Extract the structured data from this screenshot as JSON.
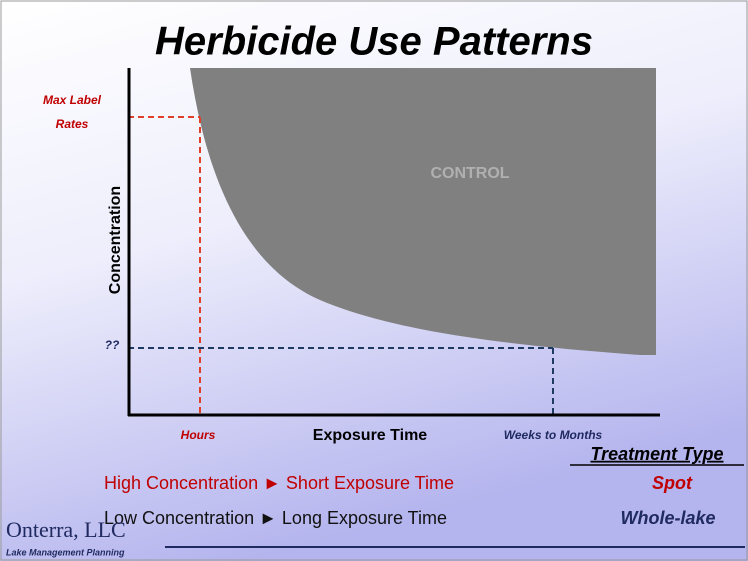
{
  "title": "Herbicide Use Patterns",
  "axes": {
    "x_label": "Exposure Time",
    "y_label": "Concentration"
  },
  "y_markers": [
    "Max Label",
    "Rates",
    "??"
  ],
  "x_markers": [
    "Hours",
    "Weeks to Months"
  ],
  "region_label": "CONTROL",
  "legend": {
    "heading": "Treatment Type",
    "rows": [
      {
        "left": "High Concentration",
        "right": "Short Exposure Time",
        "type": "Spot"
      },
      {
        "left": "Low Concentration",
        "right": "Long Exposure Time",
        "type": "Whole-lake"
      }
    ]
  },
  "logo": {
    "name": "Onterra, LLC",
    "tagline": "Lake Management Planning"
  }
}
